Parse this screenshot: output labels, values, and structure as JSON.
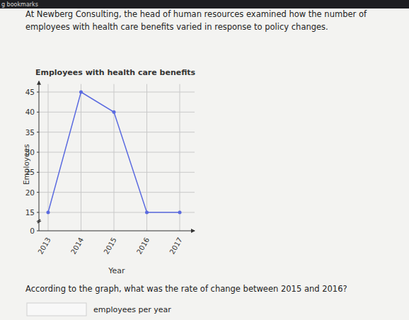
{
  "page": {
    "toolbar": "g bookmarks",
    "intro": [
      "At Newberg Consulting, the head of human resources examined how the number of",
      "employees with health care benefits varied in response to policy changes."
    ],
    "question": "According to the graph, what was the rate of change between 2015 and 2016?",
    "answer_unit": "employees per year"
  },
  "chart_data": {
    "type": "line",
    "title": "Employees with health care benefits",
    "x_label": "Year",
    "y_label": "Employees",
    "categories": [
      "2013",
      "2014",
      "2015",
      "2016",
      "2017"
    ],
    "values": [
      15,
      45,
      40,
      15,
      15
    ],
    "color": "#5b6be0",
    "marker": "circle",
    "ylim": [
      0,
      47
    ],
    "yticks": [
      0,
      15,
      20,
      25,
      30,
      35,
      40,
      45
    ],
    "grid": true
  }
}
